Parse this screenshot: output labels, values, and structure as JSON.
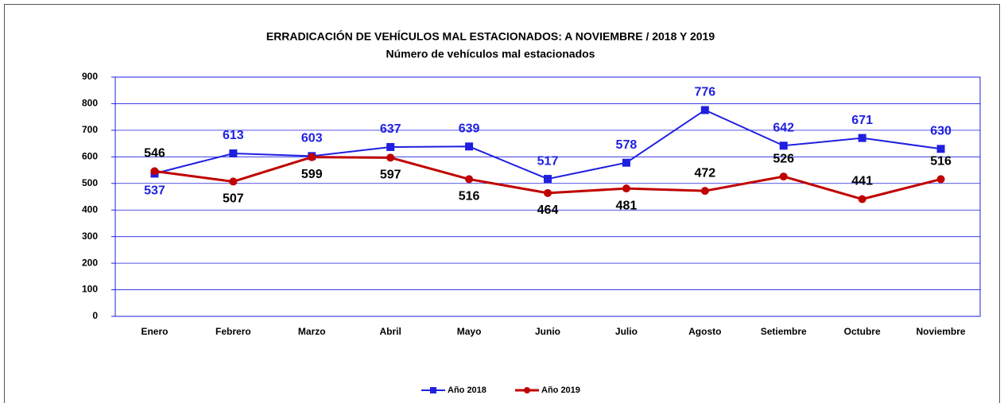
{
  "chart_data": {
    "type": "line",
    "title": "ERRADICACIÓN DE VEHÍCULOS MAL ESTACIONADOS: A NOVIEMBRE / 2018 Y 2019",
    "subtitle": "Número de vehículos mal estacionados",
    "categories": [
      "Enero",
      "Febrero",
      "Marzo",
      "Abril",
      "Mayo",
      "Junio",
      "Julio",
      "Agosto",
      "Setiembre",
      "Octubre",
      "Noviembre"
    ],
    "series": [
      {
        "name": "Año 2018",
        "color": "#1f1fe0",
        "marker": "square",
        "values": [
          537,
          613,
          603,
          637,
          639,
          517,
          578,
          776,
          642,
          671,
          630
        ]
      },
      {
        "name": "Año 2019",
        "color": "#c00000",
        "marker": "circle",
        "values": [
          546,
          507,
          599,
          597,
          516,
          464,
          481,
          472,
          526,
          441,
          516
        ]
      }
    ],
    "ylim": [
      0,
      900
    ],
    "yticks": [
      0,
      100,
      200,
      300,
      400,
      500,
      600,
      700,
      800,
      900
    ],
    "grid": true,
    "legend": "bottom"
  }
}
